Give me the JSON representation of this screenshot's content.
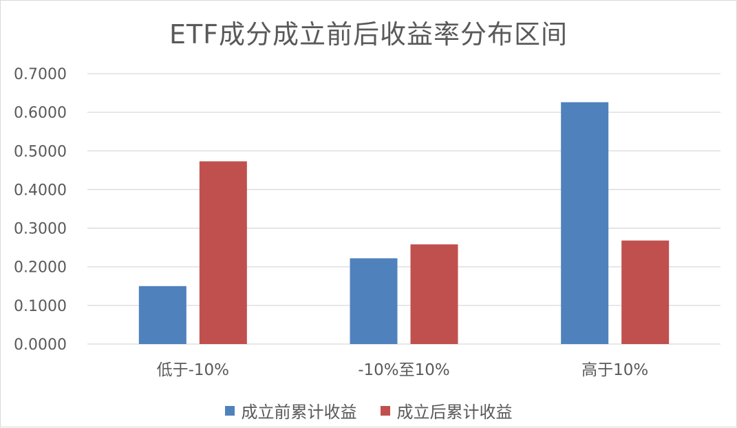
{
  "chart_data": {
    "type": "bar",
    "title": "ETF成分成立前后收益率分布区间",
    "categories": [
      "低于-10%",
      "-10%至10%",
      "高于10%"
    ],
    "series": [
      {
        "name": "成立前累计收益",
        "color": "#4F81BD",
        "values": [
          0.15,
          0.222,
          0.626
        ]
      },
      {
        "name": "成立后累计收益",
        "color": "#C0504D",
        "values": [
          0.473,
          0.258,
          0.268
        ]
      }
    ],
    "y_ticks": [
      "0.0000",
      "0.1000",
      "0.2000",
      "0.3000",
      "0.4000",
      "0.5000",
      "0.6000",
      "0.7000"
    ],
    "ylim": [
      0,
      0.7
    ],
    "grid": true,
    "legend_position": "bottom"
  }
}
